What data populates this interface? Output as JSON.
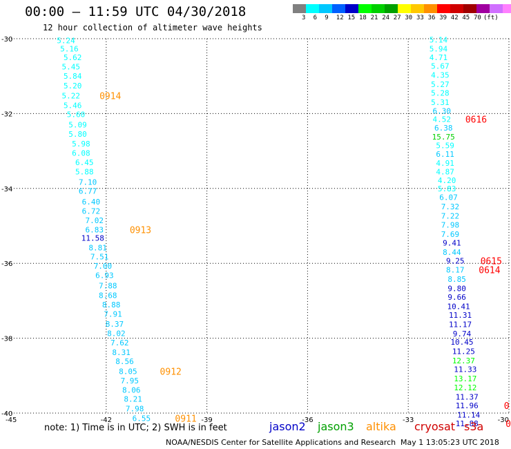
{
  "title": "00:00 – 11:59 UTC 04/30/2018",
  "subtitle": "12 hour collection of altimeter wave heights",
  "colorbar": {
    "unit": "(ft)",
    "colors": [
      "#808080",
      "#00ffff",
      "#00c8ff",
      "#0060ff",
      "#0000c8",
      "#00ff00",
      "#00d000",
      "#00a000",
      "#ffff00",
      "#ffc800",
      "#ff9000",
      "#ff0000",
      "#d00000",
      "#a00000",
      "#a000a0",
      "#d070ff",
      "#ff80ff",
      "#000000"
    ],
    "labels": [
      "3",
      "6",
      "9",
      "12",
      "15",
      "18",
      "21",
      "24",
      "27",
      "30",
      "33",
      "36",
      "39",
      "42",
      "45",
      "70"
    ]
  },
  "map": {
    "lon_range": [
      -45,
      -30
    ],
    "lat_range": [
      -40,
      -30
    ],
    "lon_ticks": [
      -45,
      -42,
      -39,
      -36,
      -33,
      -30
    ],
    "lat_ticks": [
      -30,
      -32,
      -34,
      -36,
      -38,
      -40
    ],
    "lon_tick_labels": [
      "-45",
      "-42",
      "-39",
      "-36",
      "-33",
      "-30"
    ],
    "lat_tick_labels": [
      "-30",
      "-32",
      "-34",
      "-36",
      "-38",
      "-40"
    ]
  },
  "tracks": [
    {
      "name": "west",
      "points": [
        {
          "lon": -43.2,
          "lat": -30.05,
          "v": "5.24",
          "c": "#00ffff"
        },
        {
          "lon": -43.1,
          "lat": -30.27,
          "v": "5.16",
          "c": "#00ffff"
        },
        {
          "lon": -43.0,
          "lat": -30.5,
          "v": "5.62",
          "c": "#00ffff"
        },
        {
          "lon": -43.05,
          "lat": -30.75,
          "v": "5.45",
          "c": "#00ffff"
        },
        {
          "lon": -43.0,
          "lat": -31.0,
          "v": "5.84",
          "c": "#00ffff"
        },
        {
          "lon": -43.0,
          "lat": -31.25,
          "v": "5.20",
          "c": "#00ffff"
        },
        {
          "lon": -43.05,
          "lat": -31.52,
          "v": "5.22",
          "c": "#00ffff"
        },
        {
          "lon": -43.0,
          "lat": -31.78,
          "v": "5.46",
          "c": "#00ffff"
        },
        {
          "lon": -42.9,
          "lat": -32.02,
          "v": "5.60",
          "c": "#00ffff"
        },
        {
          "lon": -42.85,
          "lat": -32.3,
          "v": "5.09",
          "c": "#00ffff"
        },
        {
          "lon": -42.85,
          "lat": -32.55,
          "v": "5.80",
          "c": "#00ffff"
        },
        {
          "lon": -42.75,
          "lat": -32.8,
          "v": "5.98",
          "c": "#00ffff"
        },
        {
          "lon": -42.75,
          "lat": -33.05,
          "v": "6.08",
          "c": "#00ffff"
        },
        {
          "lon": -42.65,
          "lat": -33.3,
          "v": "6.45",
          "c": "#00ffff"
        },
        {
          "lon": -42.65,
          "lat": -33.55,
          "v": "5.88",
          "c": "#00ffff"
        },
        {
          "lon": -42.55,
          "lat": -33.83,
          "v": "7.10",
          "c": "#00c8ff"
        },
        {
          "lon": -42.55,
          "lat": -34.07,
          "v": "6.77",
          "c": "#00c8ff"
        },
        {
          "lon": -42.45,
          "lat": -34.35,
          "v": "6.40",
          "c": "#00c8ff"
        },
        {
          "lon": -42.45,
          "lat": -34.6,
          "v": "6.72",
          "c": "#00c8ff"
        },
        {
          "lon": -42.35,
          "lat": -34.85,
          "v": "7.02",
          "c": "#00c8ff"
        },
        {
          "lon": -42.35,
          "lat": -35.1,
          "v": "6.83",
          "c": "#00c8ff"
        },
        {
          "lon": -42.4,
          "lat": -35.32,
          "v": "11.58",
          "c": "#0000c8"
        },
        {
          "lon": -42.25,
          "lat": -35.58,
          "v": "8.81",
          "c": "#00c8ff"
        },
        {
          "lon": -42.2,
          "lat": -35.82,
          "v": "7.51",
          "c": "#00c8ff"
        },
        {
          "lon": -42.1,
          "lat": -36.07,
          "v": "7.00",
          "c": "#00c8ff"
        },
        {
          "lon": -42.05,
          "lat": -36.32,
          "v": "6.93",
          "c": "#00c8ff"
        },
        {
          "lon": -41.95,
          "lat": -36.6,
          "v": "7.88",
          "c": "#00c8ff"
        },
        {
          "lon": -41.95,
          "lat": -36.85,
          "v": "8.68",
          "c": "#00c8ff"
        },
        {
          "lon": -41.85,
          "lat": -37.1,
          "v": "8.88",
          "c": "#00c8ff"
        },
        {
          "lon": -41.8,
          "lat": -37.35,
          "v": "7.91",
          "c": "#00c8ff"
        },
        {
          "lon": -41.75,
          "lat": -37.62,
          "v": "8.37",
          "c": "#00c8ff"
        },
        {
          "lon": -41.7,
          "lat": -37.87,
          "v": "8.02",
          "c": "#00c8ff"
        },
        {
          "lon": -41.6,
          "lat": -38.12,
          "v": "7.62",
          "c": "#00c8ff"
        },
        {
          "lon": -41.55,
          "lat": -38.38,
          "v": "8.31",
          "c": "#00c8ff"
        },
        {
          "lon": -41.45,
          "lat": -38.62,
          "v": "8.56",
          "c": "#00c8ff"
        },
        {
          "lon": -41.35,
          "lat": -38.88,
          "v": "8.05",
          "c": "#00c8ff"
        },
        {
          "lon": -41.3,
          "lat": -39.13,
          "v": "7.95",
          "c": "#00c8ff"
        },
        {
          "lon": -41.25,
          "lat": -39.38,
          "v": "8.06",
          "c": "#00c8ff"
        },
        {
          "lon": -41.2,
          "lat": -39.62,
          "v": "8.21",
          "c": "#00c8ff"
        },
        {
          "lon": -41.15,
          "lat": -39.88,
          "v": "7.98",
          "c": "#00c8ff"
        },
        {
          "lon": -40.95,
          "lat": -40.14,
          "v": "6.55",
          "c": "#00c8ff"
        }
      ],
      "time_labels": [
        {
          "lon": -42.2,
          "lat": -31.52,
          "t": "0914",
          "c": "#ff9000"
        },
        {
          "lon": -41.3,
          "lat": -35.1,
          "t": "0913",
          "c": "#ff9000"
        },
        {
          "lon": -40.4,
          "lat": -38.88,
          "t": "0912",
          "c": "#ff9000"
        },
        {
          "lon": -39.95,
          "lat": -40.14,
          "t": "0911",
          "c": "#ff9000"
        }
      ]
    },
    {
      "name": "east",
      "points": [
        {
          "lon": -32.1,
          "lat": -30.03,
          "v": "5.14",
          "c": "#00ffff"
        },
        {
          "lon": -32.1,
          "lat": -30.27,
          "v": "5.94",
          "c": "#00ffff"
        },
        {
          "lon": -32.1,
          "lat": -30.5,
          "v": "4.71",
          "c": "#00ffff"
        },
        {
          "lon": -32.05,
          "lat": -30.73,
          "v": "5.67",
          "c": "#00ffff"
        },
        {
          "lon": -32.05,
          "lat": -30.97,
          "v": "4.35",
          "c": "#00ffff"
        },
        {
          "lon": -32.05,
          "lat": -31.22,
          "v": "5.27",
          "c": "#00ffff"
        },
        {
          "lon": -32.05,
          "lat": -31.45,
          "v": "5.28",
          "c": "#00ffff"
        },
        {
          "lon": -32.05,
          "lat": -31.7,
          "v": "5.31",
          "c": "#00ffff"
        },
        {
          "lon": -32.0,
          "lat": -31.93,
          "v": "6.30",
          "c": "#00c8ff"
        },
        {
          "lon": -32.0,
          "lat": -32.15,
          "v": "4.52",
          "c": "#00ffff"
        },
        {
          "lon": -31.95,
          "lat": -32.38,
          "v": "6.38",
          "c": "#00c8ff"
        },
        {
          "lon": -31.95,
          "lat": -32.62,
          "v": "15.75",
          "c": "#00d000"
        },
        {
          "lon": -31.9,
          "lat": -32.85,
          "v": "5.59",
          "c": "#00ffff"
        },
        {
          "lon": -31.9,
          "lat": -33.08,
          "v": "6.11",
          "c": "#00c8ff"
        },
        {
          "lon": -31.9,
          "lat": -33.32,
          "v": "4.91",
          "c": "#00ffff"
        },
        {
          "lon": -31.9,
          "lat": -33.55,
          "v": "4.87",
          "c": "#00ffff"
        },
        {
          "lon": -31.85,
          "lat": -33.78,
          "v": "4.20",
          "c": "#00ffff"
        },
        {
          "lon": -31.85,
          "lat": -34.0,
          "v": "5.83",
          "c": "#00ffff"
        },
        {
          "lon": -31.8,
          "lat": -34.23,
          "v": "6.07",
          "c": "#00c8ff"
        },
        {
          "lon": -31.75,
          "lat": -34.48,
          "v": "7.32",
          "c": "#00c8ff"
        },
        {
          "lon": -31.75,
          "lat": -34.73,
          "v": "7.22",
          "c": "#00c8ff"
        },
        {
          "lon": -31.75,
          "lat": -34.97,
          "v": "7.98",
          "c": "#00c8ff"
        },
        {
          "lon": -31.75,
          "lat": -35.22,
          "v": "7.69",
          "c": "#00c8ff"
        },
        {
          "lon": -31.7,
          "lat": -35.45,
          "v": "9.41",
          "c": "#0000c8"
        },
        {
          "lon": -31.7,
          "lat": -35.7,
          "v": "8.44",
          "c": "#00c8ff"
        },
        {
          "lon": -31.6,
          "lat": -35.93,
          "v": "9.25",
          "c": "#0000c8"
        },
        {
          "lon": -31.6,
          "lat": -36.17,
          "v": "8.17",
          "c": "#00c8ff"
        },
        {
          "lon": -31.55,
          "lat": -36.42,
          "v": "8.85",
          "c": "#00c8ff"
        },
        {
          "lon": -31.55,
          "lat": -36.67,
          "v": "9.80",
          "c": "#0000c8"
        },
        {
          "lon": -31.55,
          "lat": -36.9,
          "v": "9.66",
          "c": "#0000c8"
        },
        {
          "lon": -31.5,
          "lat": -37.15,
          "v": "10.41",
          "c": "#0000c8"
        },
        {
          "lon": -31.45,
          "lat": -37.38,
          "v": "11.31",
          "c": "#0000c8"
        },
        {
          "lon": -31.45,
          "lat": -37.63,
          "v": "11.17",
          "c": "#0000c8"
        },
        {
          "lon": -31.4,
          "lat": -37.88,
          "v": "9.74",
          "c": "#0000c8"
        },
        {
          "lon": -31.4,
          "lat": -38.1,
          "v": "10.45",
          "c": "#0000c8"
        },
        {
          "lon": -31.35,
          "lat": -38.35,
          "v": "11.25",
          "c": "#0000c8"
        },
        {
          "lon": -31.35,
          "lat": -38.6,
          "v": "12.37",
          "c": "#00ff00"
        },
        {
          "lon": -31.3,
          "lat": -38.83,
          "v": "11.33",
          "c": "#0000c8"
        },
        {
          "lon": -31.3,
          "lat": -39.08,
          "v": "13.17",
          "c": "#00ff00"
        },
        {
          "lon": -31.3,
          "lat": -39.32,
          "v": "12.12",
          "c": "#00ff00"
        },
        {
          "lon": -31.25,
          "lat": -39.57,
          "v": "11.37",
          "c": "#0000c8"
        },
        {
          "lon": -31.25,
          "lat": -39.8,
          "v": "11.96",
          "c": "#0000c8"
        },
        {
          "lon": -31.2,
          "lat": -40.05,
          "v": "11.14",
          "c": "#0000c8"
        },
        {
          "lon": -31.25,
          "lat": -40.28,
          "v": "11.88",
          "c": "#0000c8"
        }
      ],
      "time_labels": [
        {
          "lon": -31.3,
          "lat": -32.15,
          "t": "0616",
          "c": "#ff0000"
        },
        {
          "lon": -30.85,
          "lat": -35.93,
          "t": "0615",
          "c": "#ff0000"
        },
        {
          "lon": -30.9,
          "lat": -36.17,
          "t": "0614",
          "c": "#ff0000"
        },
        {
          "lon": -30.15,
          "lat": -39.8,
          "t": "0",
          "c": "#ff0000"
        },
        {
          "lon": -30.1,
          "lat": -40.28,
          "t": "0",
          "c": "#ff0000"
        }
      ]
    }
  ],
  "note": "note:  1) Time is in UTC;  2) SWH is in feet",
  "satellites": [
    {
      "name": "jason2",
      "color": "#0000c8"
    },
    {
      "name": "jason3",
      "color": "#00a000"
    },
    {
      "name": "altika",
      "color": "#ff9000"
    },
    {
      "name": "cryosat",
      "color": "#d00000"
    },
    {
      "name": "s3a",
      "color": "#d00000"
    }
  ],
  "credit": "NOAA/NESDIS Center for Satellite Applications and Research",
  "stamp": "May  1 13:05:23 UTC 2018"
}
